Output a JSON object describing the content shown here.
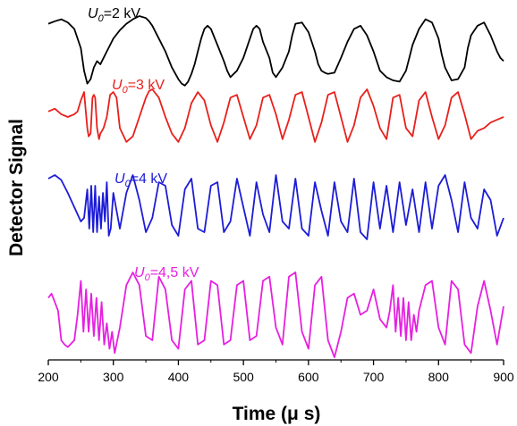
{
  "chart_data": {
    "type": "line",
    "title": "",
    "xlabel": "Time (μ s)",
    "ylabel": "Detector Signal",
    "xlim": [
      200,
      900
    ],
    "x_ticks": [
      "200",
      "300",
      "400",
      "500",
      "600",
      "700",
      "800",
      "900"
    ],
    "y_ticks_shown": false,
    "grid": false,
    "legend": "none",
    "series": [
      {
        "name": "U0=2 kV",
        "label_var": "U",
        "label_sub": "0",
        "label_rest": "=2 kV",
        "color": "#000000",
        "x": [
          200,
          210,
          220,
          230,
          240,
          250,
          255,
          260,
          265,
          270,
          275,
          280,
          285,
          290,
          295,
          300,
          310,
          320,
          330,
          340,
          350,
          355,
          360,
          370,
          380,
          390,
          400,
          405,
          410,
          415,
          420,
          425,
          430,
          435,
          440,
          445,
          450,
          460,
          470,
          475,
          480,
          490,
          500,
          510,
          515,
          520,
          525,
          530,
          540,
          545,
          550,
          560,
          570,
          575,
          580,
          590,
          600,
          610,
          615,
          620,
          625,
          630,
          640,
          650,
          660,
          670,
          680,
          690,
          700,
          710,
          720,
          730,
          740,
          750,
          755,
          760,
          770,
          780,
          790,
          800,
          805,
          810,
          820,
          830,
          840,
          845,
          850,
          860,
          870,
          880,
          890,
          895,
          900
        ],
        "y": [
          0.88,
          0.92,
          0.95,
          0.9,
          0.8,
          0.5,
          0.15,
          -0.05,
          0.02,
          0.2,
          0.3,
          0.25,
          0.35,
          0.45,
          0.55,
          0.65,
          0.78,
          0.88,
          0.95,
          1.0,
          0.97,
          0.92,
          0.85,
          0.65,
          0.45,
          0.2,
          0.02,
          -0.05,
          -0.08,
          -0.02,
          0.1,
          0.25,
          0.45,
          0.65,
          0.8,
          0.85,
          0.8,
          0.55,
          0.3,
          0.15,
          0.05,
          0.15,
          0.35,
          0.65,
          0.8,
          0.85,
          0.8,
          0.6,
          0.35,
          0.12,
          0.05,
          0.2,
          0.45,
          0.7,
          0.88,
          0.9,
          0.75,
          0.45,
          0.25,
          0.15,
          0.12,
          0.1,
          0.12,
          0.35,
          0.6,
          0.8,
          0.85,
          0.7,
          0.45,
          0.15,
          0.05,
          0.0,
          -0.02,
          0.15,
          0.35,
          0.55,
          0.8,
          0.95,
          0.9,
          0.65,
          0.4,
          0.2,
          0.0,
          0.02,
          0.2,
          0.5,
          0.7,
          0.85,
          0.9,
          0.7,
          0.45,
          0.35,
          0.3
        ]
      },
      {
        "name": "U0=3 kV",
        "label_var": "U",
        "label_sub": "0",
        "label_rest": "=3 kV",
        "color": "#e8201b",
        "x": [
          200,
          210,
          220,
          230,
          240,
          245,
          250,
          255,
          260,
          262,
          265,
          268,
          270,
          272,
          275,
          278,
          280,
          285,
          290,
          295,
          300,
          305,
          310,
          320,
          330,
          340,
          350,
          355,
          360,
          370,
          380,
          390,
          400,
          410,
          420,
          430,
          440,
          450,
          460,
          470,
          480,
          490,
          500,
          510,
          520,
          530,
          540,
          550,
          560,
          570,
          580,
          590,
          600,
          610,
          620,
          630,
          640,
          650,
          660,
          670,
          680,
          690,
          700,
          710,
          720,
          730,
          740,
          750,
          760,
          770,
          780,
          790,
          800,
          810,
          820,
          830,
          840,
          850,
          860,
          870,
          880,
          890,
          900
        ],
        "y": [
          0.6,
          0.65,
          0.55,
          0.5,
          0.55,
          0.6,
          0.8,
          0.95,
          0.3,
          0.15,
          0.2,
          0.85,
          0.9,
          0.85,
          0.3,
          0.1,
          0.2,
          0.3,
          0.5,
          0.9,
          0.95,
          0.85,
          0.3,
          0.05,
          0.15,
          0.5,
          0.85,
          0.97,
          1.0,
          0.85,
          0.5,
          0.2,
          0.05,
          0.3,
          0.75,
          0.95,
          0.8,
          0.35,
          0.05,
          0.4,
          0.85,
          0.9,
          0.5,
          0.1,
          0.35,
          0.85,
          0.9,
          0.55,
          0.1,
          0.45,
          0.9,
          0.95,
          0.5,
          0.05,
          0.4,
          0.9,
          0.95,
          0.5,
          0.05,
          0.35,
          0.85,
          1.0,
          0.7,
          0.3,
          0.1,
          0.85,
          0.9,
          0.3,
          0.15,
          0.8,
          0.95,
          0.5,
          0.1,
          0.35,
          0.85,
          0.95,
          0.55,
          0.1,
          0.25,
          0.3,
          0.4,
          0.45,
          0.5
        ]
      },
      {
        "name": "U0=4 kV",
        "label_var": "U",
        "label_sub": "0",
        "label_rest": "=4 kV",
        "color": "#1c1cd6",
        "x": [
          200,
          210,
          220,
          230,
          240,
          250,
          255,
          260,
          263,
          266,
          269,
          272,
          275,
          278,
          281,
          284,
          287,
          290,
          293,
          296,
          300,
          310,
          320,
          330,
          340,
          350,
          360,
          370,
          380,
          390,
          400,
          410,
          420,
          430,
          440,
          450,
          460,
          470,
          480,
          490,
          500,
          510,
          520,
          530,
          540,
          550,
          560,
          570,
          580,
          590,
          600,
          610,
          620,
          630,
          640,
          650,
          660,
          670,
          680,
          690,
          700,
          710,
          720,
          730,
          740,
          750,
          760,
          770,
          780,
          790,
          800,
          810,
          820,
          830,
          840,
          850,
          860,
          870,
          880,
          890,
          900
        ],
        "y": [
          0.9,
          0.95,
          0.88,
          0.7,
          0.5,
          0.3,
          0.35,
          0.75,
          0.2,
          0.8,
          0.15,
          0.8,
          0.15,
          0.65,
          0.2,
          0.7,
          0.3,
          0.85,
          0.1,
          0.2,
          0.7,
          0.2,
          0.7,
          0.95,
          0.6,
          0.15,
          0.35,
          0.85,
          0.8,
          0.25,
          0.1,
          0.75,
          0.9,
          0.2,
          0.15,
          0.8,
          0.85,
          0.15,
          0.3,
          0.9,
          0.5,
          0.1,
          0.85,
          0.4,
          0.15,
          0.95,
          0.3,
          0.2,
          0.9,
          0.2,
          0.1,
          0.85,
          0.45,
          0.1,
          0.85,
          0.3,
          0.15,
          0.9,
          0.15,
          0.05,
          0.85,
          0.2,
          0.8,
          0.15,
          0.85,
          0.25,
          0.75,
          0.15,
          0.85,
          0.2,
          0.8,
          0.95,
          0.6,
          0.15,
          0.85,
          0.35,
          0.2,
          0.75,
          0.6,
          0.1,
          0.35
        ]
      },
      {
        "name": "U0=4,5 kV",
        "label_var": "U",
        "label_sub": "0",
        "label_rest": "=4,5 kV",
        "color": "#e620e0",
        "x": [
          200,
          205,
          210,
          215,
          220,
          225,
          230,
          240,
          245,
          250,
          254,
          258,
          262,
          266,
          270,
          274,
          278,
          282,
          286,
          290,
          294,
          298,
          302,
          310,
          320,
          330,
          340,
          350,
          360,
          370,
          380,
          390,
          400,
          410,
          420,
          430,
          440,
          450,
          460,
          470,
          480,
          490,
          500,
          510,
          520,
          530,
          540,
          550,
          560,
          570,
          580,
          590,
          600,
          610,
          620,
          630,
          640,
          650,
          660,
          670,
          680,
          690,
          700,
          710,
          720,
          725,
          730,
          734,
          738,
          742,
          746,
          750,
          754,
          758,
          762,
          766,
          770,
          780,
          790,
          800,
          810,
          820,
          830,
          840,
          850,
          860,
          870,
          880,
          890,
          900
        ],
        "y": [
          0.7,
          0.75,
          0.65,
          0.55,
          0.2,
          0.15,
          0.12,
          0.2,
          0.5,
          0.9,
          0.3,
          0.8,
          0.3,
          0.75,
          0.25,
          0.7,
          0.2,
          0.65,
          0.15,
          0.4,
          0.1,
          0.3,
          0.05,
          0.35,
          0.85,
          1.0,
          0.85,
          0.25,
          0.2,
          0.95,
          0.8,
          0.2,
          0.1,
          0.8,
          0.9,
          0.15,
          0.2,
          0.9,
          0.85,
          0.15,
          0.2,
          0.85,
          0.9,
          0.2,
          0.25,
          0.9,
          0.95,
          0.35,
          0.15,
          0.95,
          1.0,
          0.3,
          0.1,
          0.85,
          0.95,
          0.2,
          0.0,
          0.3,
          0.7,
          0.75,
          0.5,
          0.55,
          0.8,
          0.45,
          0.35,
          0.55,
          0.85,
          0.3,
          0.7,
          0.25,
          0.7,
          0.2,
          0.65,
          0.2,
          0.5,
          0.3,
          0.55,
          0.85,
          0.9,
          0.35,
          0.15,
          0.9,
          0.8,
          0.15,
          0.05,
          0.6,
          0.9,
          0.55,
          0.15,
          0.6
        ]
      }
    ]
  }
}
